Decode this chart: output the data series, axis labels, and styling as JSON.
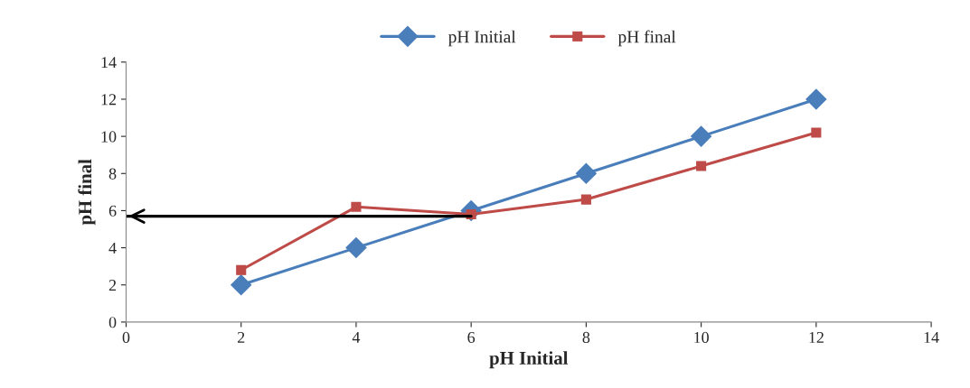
{
  "chart_data": {
    "type": "line",
    "xlabel": "pH Initial",
    "ylabel": "pH final",
    "x": [
      2,
      4,
      6,
      8,
      10,
      12
    ],
    "series": [
      {
        "name": "pH Initial",
        "color": "#4a7ebb",
        "marker": "diamond",
        "values": [
          2,
          4,
          6,
          8,
          10,
          12
        ]
      },
      {
        "name": "pH final",
        "color": "#be4b48",
        "marker": "square",
        "values": [
          2.8,
          6.2,
          5.8,
          6.6,
          8.4,
          10.2
        ]
      },
      {
        "type": "line",
        "color": "#000000",
        "marker": "none",
        "x": [
          6,
          0
        ],
        "values": [
          5.7,
          5.7
        ]
      }
    ],
    "xlim": [
      0,
      14
    ],
    "xticks": [
      0,
      2,
      4,
      6,
      8,
      10,
      12,
      14
    ],
    "ylim": [
      0,
      14
    ],
    "yticks": [
      0,
      2,
      4,
      6,
      8,
      10,
      12,
      14
    ],
    "grid": false,
    "legend": "top"
  }
}
